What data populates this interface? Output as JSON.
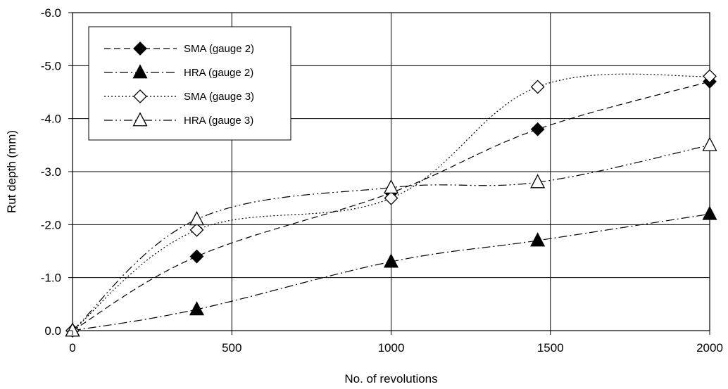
{
  "chart_data": {
    "type": "line",
    "title": "",
    "xlabel": "No. of revolutions",
    "ylabel": "Rut depth (mm)",
    "xlim": [
      0,
      2000
    ],
    "ylim": [
      0,
      -6
    ],
    "x_ticks": [
      0,
      500,
      1000,
      1500,
      2000
    ],
    "y_ticks": [
      0,
      -1,
      -2,
      -3,
      -4,
      -5,
      -6
    ],
    "x_tick_labels": [
      "0",
      "500",
      "1000",
      "1500",
      "2000"
    ],
    "y_tick_labels": [
      "0.0",
      "-1.0",
      "-2.0",
      "-3.0",
      "-4.0",
      "-5.0",
      "-6.0"
    ],
    "grid": true,
    "legend_position": "top-left",
    "series": [
      {
        "name": "SMA (gauge 2)",
        "marker": "diamond-filled",
        "line": "dashed",
        "x": [
          0,
          390,
          1000,
          1460,
          2000
        ],
        "y": [
          0.0,
          -1.4,
          -2.6,
          -3.8,
          -4.7
        ]
      },
      {
        "name": "HRA (gauge 2)",
        "marker": "triangle-filled",
        "line": "dash-dot",
        "x": [
          0,
          390,
          1000,
          1460,
          2000
        ],
        "y": [
          0.0,
          -0.4,
          -1.3,
          -1.7,
          -2.2
        ]
      },
      {
        "name": "SMA (gauge 3)",
        "marker": "diamond-open",
        "line": "dotted",
        "x": [
          0,
          390,
          1000,
          1460,
          2000
        ],
        "y": [
          0.0,
          -1.9,
          -2.5,
          -4.6,
          -4.8
        ]
      },
      {
        "name": "HRA (gauge 3)",
        "marker": "triangle-open",
        "line": "dash-dot-dot",
        "x": [
          0,
          390,
          1000,
          1460,
          2000
        ],
        "y": [
          0.0,
          -2.1,
          -2.7,
          -2.8,
          -3.5
        ]
      }
    ]
  }
}
